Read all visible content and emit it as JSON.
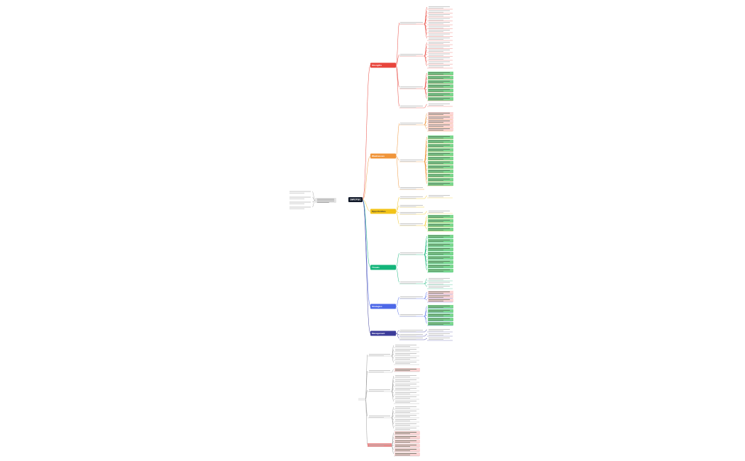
{
  "root": {
    "label": "SWOTEC"
  },
  "branches": [
    {
      "label": "Strengths"
    },
    {
      "label": "Weaknesses"
    },
    {
      "label": "Opportunities"
    },
    {
      "label": "Threats"
    },
    {
      "label": "Strategies"
    },
    {
      "label": "Management"
    }
  ]
}
